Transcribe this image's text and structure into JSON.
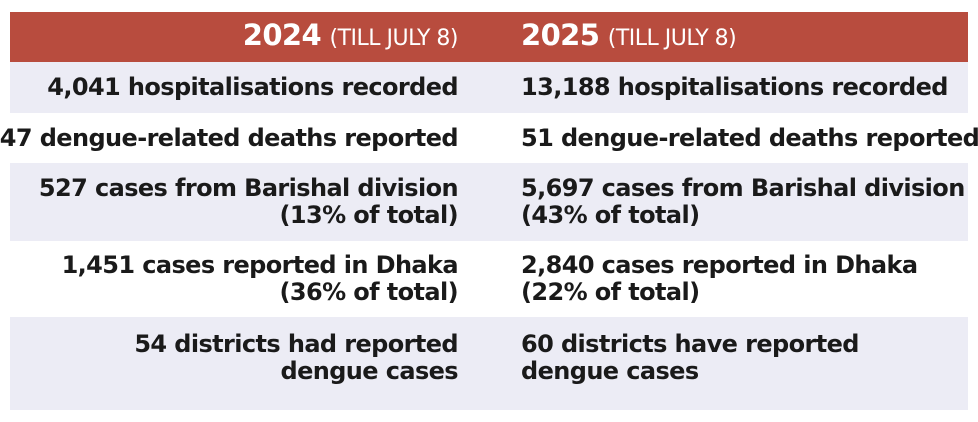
{
  "header": {
    "left": {
      "year": "2024",
      "qualifier": "(TILL JULY 8)"
    },
    "right": {
      "year": "2025",
      "qualifier": "(TILL JULY 8)"
    }
  },
  "rows": [
    {
      "left": [
        "4,041 hospitalisations recorded"
      ],
      "right": [
        "13,188 hospitalisations recorded"
      ]
    },
    {
      "left": [
        "47 dengue-related deaths reported"
      ],
      "right": [
        "51 dengue-related deaths reported"
      ]
    },
    {
      "left": [
        "527 cases from Barishal division",
        "(13% of total)"
      ],
      "right": [
        "5,697 cases from Barishal division",
        "(43% of total)"
      ]
    },
    {
      "left": [
        "1,451 cases reported in Dhaka",
        "(36% of total)"
      ],
      "right": [
        "2,840 cases reported in Dhaka",
        "(22% of total)"
      ]
    },
    {
      "left": [
        "54 districts had reported",
        "dengue cases"
      ],
      "right": [
        "60 districts have reported",
        "dengue cases"
      ]
    }
  ],
  "colors": {
    "header_bg": "#b84c3e",
    "row_shade": "#ececf5",
    "row_plain": "#ffffff",
    "text": "#1a1a1a"
  }
}
